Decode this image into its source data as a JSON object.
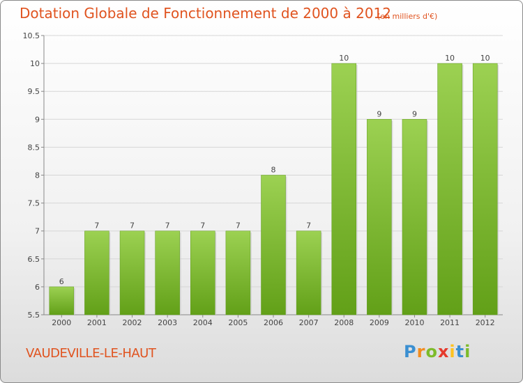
{
  "chart_data": {
    "type": "bar",
    "title": "Dotation Globale de Fonctionnement de 2000 à 2012",
    "subtitle": "(en milliers d'€)",
    "categories": [
      "2000",
      "2001",
      "2002",
      "2003",
      "2004",
      "2005",
      "2006",
      "2007",
      "2008",
      "2009",
      "2010",
      "2011",
      "2012"
    ],
    "values": [
      6,
      7,
      7,
      7,
      7,
      7,
      8,
      7,
      10,
      9,
      9,
      10,
      10
    ],
    "data_labels": [
      "6",
      "7",
      "7",
      "7",
      "7",
      "7",
      "8",
      "7",
      "10",
      "9",
      "9",
      "10",
      "10"
    ],
    "y_ticks": [
      5.5,
      6,
      6.5,
      7,
      7.5,
      8,
      8.5,
      9,
      9.5,
      10,
      10.5
    ],
    "y_tick_labels": [
      "5.5",
      "6",
      "6.5",
      "7",
      "7.5",
      "8",
      "8.5",
      "9",
      "9.5",
      "10",
      "10.5"
    ],
    "ylim": [
      5.5,
      10.5
    ],
    "xlabel": "",
    "ylabel": "",
    "grid": true,
    "bar_color": "#7fbf2a"
  },
  "footer": {
    "commune": "VAUDEVILLE-LE-HAUT",
    "logo": {
      "p": "P",
      "r": "r",
      "o": "o",
      "x": "x",
      "i1": "i",
      "t": "t",
      "i2": "i"
    }
  }
}
